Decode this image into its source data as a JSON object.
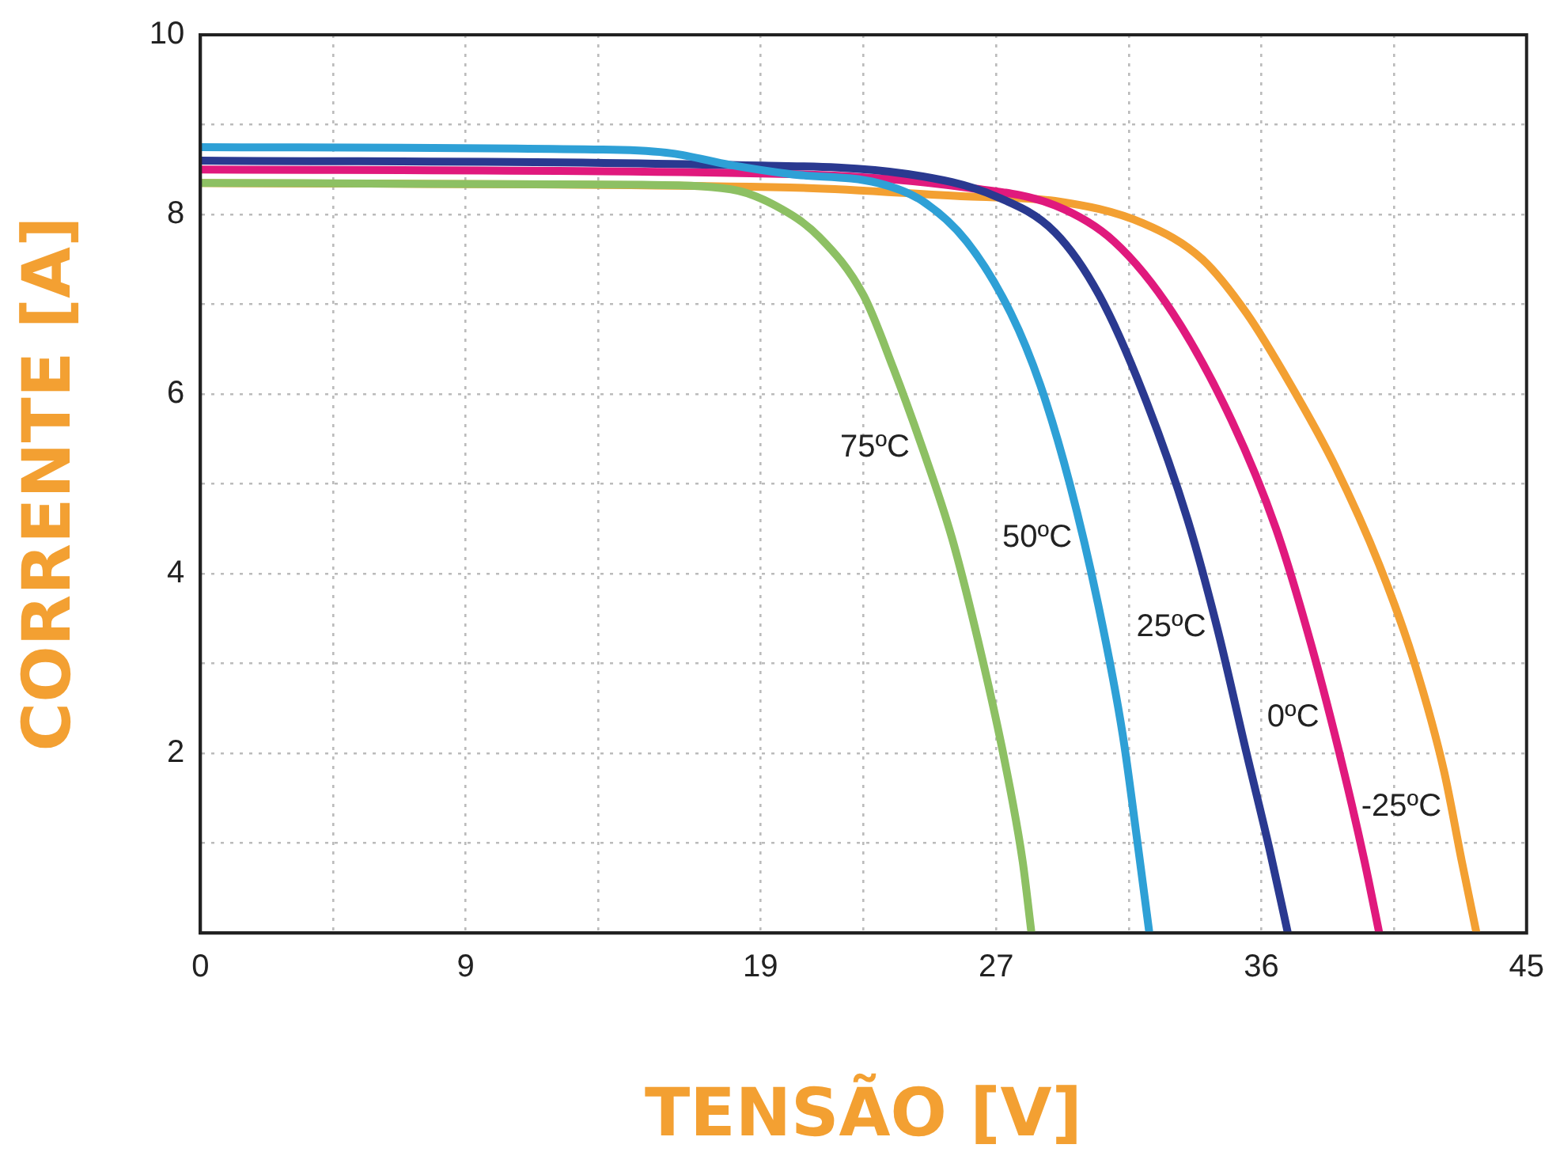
{
  "chart_data": {
    "type": "line",
    "xlabel": "TENSÃO [V]",
    "ylabel": "CORRENTE [A]",
    "xlim": [
      0,
      45
    ],
    "ylim": [
      0,
      10
    ],
    "xticks": [
      0,
      {
        "value": 4.5,
        "label": null
      },
      9,
      {
        "value": 13.5,
        "label": null
      },
      19,
      {
        "value": 22.5,
        "label": null
      },
      27,
      {
        "value": 31.5,
        "label": null
      },
      36,
      {
        "value": 40.5,
        "label": null
      },
      45
    ],
    "yticks": [
      {
        "value": 0,
        "label": null
      },
      {
        "value": 1,
        "label": null
      },
      2,
      {
        "value": 3,
        "label": null
      },
      4,
      {
        "value": 5,
        "label": null
      },
      6,
      {
        "value": 7,
        "label": null
      },
      8,
      {
        "value": 9,
        "label": null
      },
      10
    ],
    "grid": true,
    "legend": false,
    "marker": "none",
    "line_style": "solid",
    "series": [
      {
        "name": "75ºC",
        "color": "#8dc063",
        "x": [
          0,
          15,
          18,
          19.5,
          21,
          22.5,
          23.5,
          24.5,
          25.5,
          26.5,
          27.3,
          27.9,
          28.2
        ],
        "values": [
          8.35,
          8.33,
          8.28,
          8.1,
          7.75,
          7.1,
          6.3,
          5.4,
          4.4,
          3.1,
          1.9,
          0.8,
          0
        ]
      },
      {
        "name": "50ºC",
        "color": "#2ea0d6",
        "x": [
          0,
          14,
          16,
          18,
          20,
          23,
          24.5,
          26,
          27.5,
          28.5,
          29.5,
          30.5,
          31.3,
          31.8,
          32.2
        ],
        "values": [
          8.75,
          8.72,
          8.68,
          8.55,
          8.45,
          8.35,
          8.15,
          7.7,
          6.9,
          6.1,
          5.0,
          3.6,
          2.2,
          1.0,
          0
        ]
      },
      {
        "name": "25ºC",
        "color": "#2a3990",
        "x": [
          0,
          18,
          24,
          27,
          29,
          30.5,
          32,
          33.5,
          34.5,
          35.5,
          36.3,
          36.9
        ],
        "values": [
          8.6,
          8.55,
          8.45,
          8.2,
          7.8,
          7.1,
          6.0,
          4.6,
          3.4,
          2.0,
          0.9,
          0
        ]
      },
      {
        "name": "0ºC",
        "color": "#e0197d",
        "x": [
          0,
          20,
          26,
          29,
          31,
          33,
          35,
          36.5,
          37.7,
          38.8,
          39.5,
          40
        ],
        "values": [
          8.5,
          8.45,
          8.3,
          8.1,
          7.7,
          6.9,
          5.7,
          4.5,
          3.2,
          1.8,
          0.8,
          0
        ]
      },
      {
        "name": "-25ºC",
        "color": "#f3a032",
        "x": [
          0,
          20,
          26,
          29,
          32,
          34,
          35.5,
          37,
          38.5,
          40,
          41.2,
          42.2,
          42.8,
          43.3
        ],
        "values": [
          8.35,
          8.3,
          8.2,
          8.15,
          7.9,
          7.5,
          6.9,
          6.1,
          5.2,
          4.1,
          3.0,
          1.8,
          0.8,
          0
        ]
      }
    ]
  }
}
